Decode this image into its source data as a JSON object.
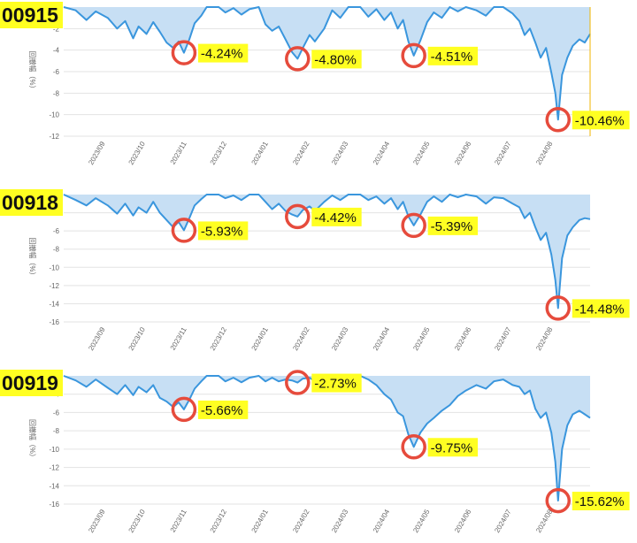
{
  "colors": {
    "line": "#3a96dd",
    "fill": "#c7dff4",
    "grid": "#e3e3e3",
    "axis_text": "#666666",
    "marker": "#e64b3c",
    "label_bg": "#ffff22",
    "label_text": "#111111",
    "end_line": "#f2b600"
  },
  "chart_data": [
    {
      "type": "area",
      "title": "00915",
      "ylabel": "回撤幅（%）",
      "ylim": [
        -12,
        0
      ],
      "yticks": [
        -12,
        -10,
        -8,
        -6,
        -4,
        -2
      ],
      "x_categories": [
        "2023/09",
        "2023/10",
        "2023/11",
        "2023/12",
        "2024/01",
        "2024/02",
        "2024/03",
        "2024/04",
        "2024/05",
        "2024/06",
        "2024/07",
        "2024/08"
      ],
      "series_points": [
        [
          "2023/08/01",
          0
        ],
        [
          "2023/08/10",
          -0.3
        ],
        [
          "2023/08/18",
          -1.2
        ],
        [
          "2023/08/25",
          -0.4
        ],
        [
          "2023/09/03",
          -1.0
        ],
        [
          "2023/09/10",
          -2.0
        ],
        [
          "2023/09/16",
          -1.3
        ],
        [
          "2023/09/22",
          -2.9
        ],
        [
          "2023/09/26",
          -1.8
        ],
        [
          "2023/10/02",
          -2.5
        ],
        [
          "2023/10/07",
          -1.4
        ],
        [
          "2023/10/12",
          -2.3
        ],
        [
          "2023/10/17",
          -3.3
        ],
        [
          "2023/10/22",
          -3.8
        ],
        [
          "2023/10/26",
          -3.2
        ],
        [
          "2023/10/30",
          -4.24
        ],
        [
          "2023/11/03",
          -3.0
        ],
        [
          "2023/11/07",
          -1.5
        ],
        [
          "2023/11/12",
          -0.8
        ],
        [
          "2023/11/16",
          0
        ],
        [
          "2023/11/25",
          0
        ],
        [
          "2023/11/30",
          -0.5
        ],
        [
          "2023/12/06",
          -0.1
        ],
        [
          "2023/12/12",
          -0.7
        ],
        [
          "2023/12/18",
          -0.2
        ],
        [
          "2023/12/25",
          0
        ],
        [
          "2023/12/30",
          -1.6
        ],
        [
          "2024/01/04",
          -2.2
        ],
        [
          "2024/01/09",
          -1.8
        ],
        [
          "2024/01/14",
          -3.0
        ],
        [
          "2024/01/19",
          -4.2
        ],
        [
          "2024/01/23",
          -4.8
        ],
        [
          "2024/01/27",
          -3.8
        ],
        [
          "2024/02/01",
          -2.6
        ],
        [
          "2024/02/05",
          -3.2
        ],
        [
          "2024/02/12",
          -2.0
        ],
        [
          "2024/02/18",
          -0.3
        ],
        [
          "2024/02/24",
          -1.0
        ],
        [
          "2024/03/01",
          0
        ],
        [
          "2024/03/10",
          0
        ],
        [
          "2024/03/16",
          -0.9
        ],
        [
          "2024/03/22",
          -0.2
        ],
        [
          "2024/03/28",
          -1.2
        ],
        [
          "2024/04/02",
          -0.5
        ],
        [
          "2024/04/07",
          -2.0
        ],
        [
          "2024/04/11",
          -1.2
        ],
        [
          "2024/04/15",
          -3.2
        ],
        [
          "2024/04/19",
          -4.51
        ],
        [
          "2024/04/24",
          -3.1
        ],
        [
          "2024/04/29",
          -1.4
        ],
        [
          "2024/05/04",
          -0.5
        ],
        [
          "2024/05/10",
          -1.0
        ],
        [
          "2024/05/16",
          0
        ],
        [
          "2024/05/22",
          -0.4
        ],
        [
          "2024/05/28",
          0
        ],
        [
          "2024/06/05",
          -0.3
        ],
        [
          "2024/06/12",
          -0.8
        ],
        [
          "2024/06/18",
          0
        ],
        [
          "2024/06/25",
          0
        ],
        [
          "2024/07/02",
          -0.6
        ],
        [
          "2024/07/07",
          -1.3
        ],
        [
          "2024/07/11",
          -2.6
        ],
        [
          "2024/07/15",
          -2.0
        ],
        [
          "2024/07/19",
          -3.3
        ],
        [
          "2024/07/23",
          -4.7
        ],
        [
          "2024/07/27",
          -3.8
        ],
        [
          "2024/07/31",
          -6.1
        ],
        [
          "2024/08/03",
          -8.0
        ],
        [
          "2024/08/05",
          -10.46
        ],
        [
          "2024/08/08",
          -6.3
        ],
        [
          "2024/08/12",
          -4.7
        ],
        [
          "2024/08/16",
          -3.6
        ],
        [
          "2024/08/21",
          -3.0
        ],
        [
          "2024/08/25",
          -3.3
        ],
        [
          "2024/08/29",
          -2.5
        ]
      ],
      "callouts": [
        {
          "date": "2023/10/30",
          "value": -4.24,
          "text": "-4.24%"
        },
        {
          "date": "2024/01/23",
          "value": -4.8,
          "text": "-4.80%"
        },
        {
          "date": "2024/04/19",
          "value": -4.51,
          "text": "-4.51%"
        },
        {
          "date": "2024/08/05",
          "value": -10.46,
          "text": "-10.46%"
        }
      ]
    },
    {
      "type": "area",
      "title": "00918",
      "ylabel": "回撤幅（%）",
      "ylim": [
        -16,
        -2
      ],
      "yticks": [
        -16,
        -14,
        -12,
        -10,
        -8,
        -6,
        -4
      ],
      "x_categories": [
        "2023/09",
        "2023/10",
        "2023/11",
        "2023/12",
        "2024/01",
        "2024/02",
        "2024/03",
        "2024/04",
        "2024/05",
        "2024/06",
        "2024/07",
        "2024/08"
      ],
      "series_points": [
        [
          "2023/08/01",
          -2.0
        ],
        [
          "2023/08/10",
          -2.6
        ],
        [
          "2023/08/18",
          -3.2
        ],
        [
          "2023/08/25",
          -2.4
        ],
        [
          "2023/09/03",
          -3.2
        ],
        [
          "2023/09/10",
          -4.1
        ],
        [
          "2023/09/16",
          -3.0
        ],
        [
          "2023/09/22",
          -4.3
        ],
        [
          "2023/09/26",
          -3.4
        ],
        [
          "2023/10/02",
          -4.0
        ],
        [
          "2023/10/07",
          -2.8
        ],
        [
          "2023/10/12",
          -4.0
        ],
        [
          "2023/10/17",
          -4.8
        ],
        [
          "2023/10/22",
          -5.6
        ],
        [
          "2023/10/26",
          -5.0
        ],
        [
          "2023/10/30",
          -5.93
        ],
        [
          "2023/11/03",
          -4.6
        ],
        [
          "2023/11/07",
          -3.2
        ],
        [
          "2023/11/12",
          -2.5
        ],
        [
          "2023/11/16",
          -2.0
        ],
        [
          "2023/11/25",
          -2.0
        ],
        [
          "2023/11/30",
          -2.4
        ],
        [
          "2023/12/06",
          -2.1
        ],
        [
          "2023/12/12",
          -2.6
        ],
        [
          "2023/12/18",
          -2.0
        ],
        [
          "2023/12/25",
          -2.0
        ],
        [
          "2023/12/30",
          -2.8
        ],
        [
          "2024/01/04",
          -3.6
        ],
        [
          "2024/01/09",
          -3.0
        ],
        [
          "2024/01/14",
          -3.8
        ],
        [
          "2024/01/19",
          -4.2
        ],
        [
          "2024/01/23",
          -4.42
        ],
        [
          "2024/01/27",
          -3.7
        ],
        [
          "2024/02/01",
          -3.3
        ],
        [
          "2024/02/05",
          -3.8
        ],
        [
          "2024/02/12",
          -2.8
        ],
        [
          "2024/02/18",
          -2.1
        ],
        [
          "2024/02/24",
          -2.6
        ],
        [
          "2024/03/01",
          -2.0
        ],
        [
          "2024/03/10",
          -2.0
        ],
        [
          "2024/03/16",
          -2.6
        ],
        [
          "2024/03/22",
          -2.2
        ],
        [
          "2024/03/28",
          -3.0
        ],
        [
          "2024/04/02",
          -2.4
        ],
        [
          "2024/04/07",
          -3.6
        ],
        [
          "2024/04/11",
          -2.8
        ],
        [
          "2024/04/15",
          -4.4
        ],
        [
          "2024/04/19",
          -5.39
        ],
        [
          "2024/04/24",
          -4.2
        ],
        [
          "2024/04/29",
          -2.8
        ],
        [
          "2024/05/04",
          -2.2
        ],
        [
          "2024/05/10",
          -2.8
        ],
        [
          "2024/05/16",
          -2.0
        ],
        [
          "2024/05/22",
          -2.3
        ],
        [
          "2024/05/28",
          -2.0
        ],
        [
          "2024/06/05",
          -2.2
        ],
        [
          "2024/06/12",
          -3.0
        ],
        [
          "2024/06/18",
          -2.3
        ],
        [
          "2024/06/25",
          -2.4
        ],
        [
          "2024/07/02",
          -3.0
        ],
        [
          "2024/07/07",
          -3.4
        ],
        [
          "2024/07/11",
          -4.6
        ],
        [
          "2024/07/15",
          -4.0
        ],
        [
          "2024/07/19",
          -5.6
        ],
        [
          "2024/07/23",
          -7.0
        ],
        [
          "2024/07/27",
          -6.2
        ],
        [
          "2024/07/31",
          -8.6
        ],
        [
          "2024/08/03",
          -11.4
        ],
        [
          "2024/08/05",
          -14.48
        ],
        [
          "2024/08/08",
          -9.0
        ],
        [
          "2024/08/12",
          -6.5
        ],
        [
          "2024/08/16",
          -5.6
        ],
        [
          "2024/08/21",
          -4.8
        ],
        [
          "2024/08/25",
          -4.6
        ],
        [
          "2024/08/29",
          -4.7
        ]
      ],
      "callouts": [
        {
          "date": "2023/10/30",
          "value": -5.93,
          "text": "-5.93%"
        },
        {
          "date": "2024/01/23",
          "value": -4.42,
          "text": "-4.42%"
        },
        {
          "date": "2024/04/19",
          "value": -5.39,
          "text": "-5.39%"
        },
        {
          "date": "2024/08/05",
          "value": -14.48,
          "text": "-14.48%"
        }
      ]
    },
    {
      "type": "area",
      "title": "00919",
      "ylabel": "回撤幅（%）",
      "ylim": [
        -16,
        -2
      ],
      "yticks": [
        -16,
        -14,
        -12,
        -10,
        -8,
        -6,
        -4
      ],
      "x_categories": [
        "2023/09",
        "2023/10",
        "2023/11",
        "2023/12",
        "2024/01",
        "2024/02",
        "2024/03",
        "2024/04",
        "2024/05",
        "2024/06",
        "2024/07",
        "2024/08"
      ],
      "series_points": [
        [
          "2023/08/01",
          -2.0
        ],
        [
          "2023/08/10",
          -2.5
        ],
        [
          "2023/08/18",
          -3.2
        ],
        [
          "2023/08/25",
          -2.4
        ],
        [
          "2023/09/03",
          -3.3
        ],
        [
          "2023/09/10",
          -4.0
        ],
        [
          "2023/09/16",
          -3.0
        ],
        [
          "2023/09/22",
          -4.1
        ],
        [
          "2023/09/26",
          -3.2
        ],
        [
          "2023/10/02",
          -3.8
        ],
        [
          "2023/10/07",
          -3.0
        ],
        [
          "2023/10/12",
          -4.4
        ],
        [
          "2023/10/17",
          -4.8
        ],
        [
          "2023/10/22",
          -5.4
        ],
        [
          "2023/10/26",
          -4.9
        ],
        [
          "2023/10/30",
          -5.66
        ],
        [
          "2023/11/03",
          -4.6
        ],
        [
          "2023/11/07",
          -3.4
        ],
        [
          "2023/11/12",
          -2.6
        ],
        [
          "2023/11/16",
          -2.0
        ],
        [
          "2023/11/25",
          -2.0
        ],
        [
          "2023/11/30",
          -2.6
        ],
        [
          "2023/12/06",
          -2.2
        ],
        [
          "2023/12/12",
          -2.7
        ],
        [
          "2023/12/18",
          -2.2
        ],
        [
          "2023/12/25",
          -2.0
        ],
        [
          "2023/12/30",
          -2.6
        ],
        [
          "2024/01/04",
          -2.2
        ],
        [
          "2024/01/09",
          -2.6
        ],
        [
          "2024/01/14",
          -2.4
        ],
        [
          "2024/01/19",
          -2.5
        ],
        [
          "2024/01/23",
          -2.73
        ],
        [
          "2024/01/27",
          -2.3
        ],
        [
          "2024/02/01",
          -2.2
        ],
        [
          "2024/02/05",
          -2.6
        ],
        [
          "2024/02/12",
          -2.2
        ],
        [
          "2024/02/18",
          -2.0
        ],
        [
          "2024/02/24",
          -2.2
        ],
        [
          "2024/03/01",
          -2.0
        ],
        [
          "2024/03/10",
          -2.0
        ],
        [
          "2024/03/16",
          -2.4
        ],
        [
          "2024/03/22",
          -3.0
        ],
        [
          "2024/03/28",
          -4.0
        ],
        [
          "2024/04/02",
          -4.6
        ],
        [
          "2024/04/07",
          -6.0
        ],
        [
          "2024/04/11",
          -6.4
        ],
        [
          "2024/04/15",
          -8.4
        ],
        [
          "2024/04/19",
          -9.75
        ],
        [
          "2024/04/24",
          -8.2
        ],
        [
          "2024/04/29",
          -7.2
        ],
        [
          "2024/05/04",
          -6.6
        ],
        [
          "2024/05/10",
          -5.8
        ],
        [
          "2024/05/16",
          -5.2
        ],
        [
          "2024/05/22",
          -4.2
        ],
        [
          "2024/05/28",
          -3.6
        ],
        [
          "2024/06/05",
          -3.0
        ],
        [
          "2024/06/12",
          -3.4
        ],
        [
          "2024/06/18",
          -2.6
        ],
        [
          "2024/06/25",
          -2.4
        ],
        [
          "2024/07/02",
          -3.0
        ],
        [
          "2024/07/07",
          -3.2
        ],
        [
          "2024/07/11",
          -4.0
        ],
        [
          "2024/07/15",
          -3.6
        ],
        [
          "2024/07/19",
          -5.6
        ],
        [
          "2024/07/23",
          -6.6
        ],
        [
          "2024/07/27",
          -6.0
        ],
        [
          "2024/07/31",
          -8.2
        ],
        [
          "2024/08/03",
          -11.4
        ],
        [
          "2024/08/05",
          -15.62
        ],
        [
          "2024/08/08",
          -10.0
        ],
        [
          "2024/08/12",
          -7.4
        ],
        [
          "2024/08/16",
          -6.2
        ],
        [
          "2024/08/21",
          -5.8
        ],
        [
          "2024/08/25",
          -6.2
        ],
        [
          "2024/08/29",
          -6.6
        ]
      ],
      "callouts": [
        {
          "date": "2023/10/30",
          "value": -5.66,
          "text": "-5.66%"
        },
        {
          "date": "2024/01/23",
          "value": -2.73,
          "text": "-2.73%"
        },
        {
          "date": "2024/04/19",
          "value": -9.75,
          "text": "-9.75%"
        },
        {
          "date": "2024/08/05",
          "value": -15.62,
          "text": "-15.62%"
        }
      ]
    }
  ]
}
